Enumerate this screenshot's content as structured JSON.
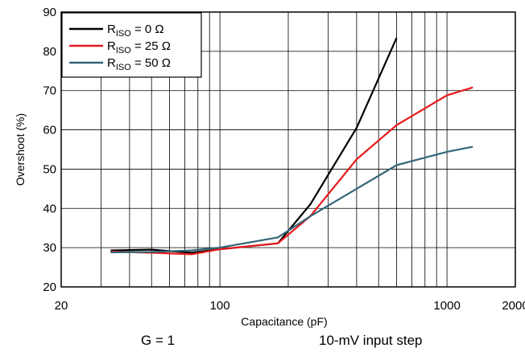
{
  "chart_data": {
    "type": "line",
    "xlabel": "Capacitance (pF)",
    "ylabel": "Overshoot (%)",
    "xscale": "log",
    "xlim": [
      20,
      2000
    ],
    "ylim": [
      20,
      90
    ],
    "x_ticks": [
      20,
      100,
      1000,
      2000
    ],
    "x_tick_labels": [
      "20",
      "100",
      "1000",
      "2000"
    ],
    "y_ticks": [
      20,
      30,
      40,
      50,
      60,
      70,
      80,
      90
    ],
    "grid": true,
    "legend_position": "top-left",
    "series": [
      {
        "name_main": "R",
        "name_sub": "ISO",
        "name_rest": " = 0 Ω",
        "color": "#000000",
        "x": [
          33,
          50,
          75,
          100,
          180,
          250,
          400,
          600
        ],
        "y": [
          29.3,
          29.5,
          28.7,
          29.6,
          31.1,
          41,
          60.5,
          83.4
        ]
      },
      {
        "name_main": "R",
        "name_sub": "ISO",
        "name_rest": " = 25 Ω",
        "color": "#e8191c",
        "x": [
          33,
          50,
          75,
          100,
          180,
          250,
          400,
          600,
          1000,
          1300
        ],
        "y": [
          29.0,
          28.7,
          28.3,
          29.6,
          31.1,
          38,
          52.5,
          61.2,
          68.8,
          70.8
        ]
      },
      {
        "name_main": "R",
        "name_sub": "ISO",
        "name_rest": " = 50 Ω",
        "color": "#336677",
        "x": [
          33,
          50,
          75,
          100,
          180,
          250,
          400,
          600,
          1000,
          1300
        ],
        "y": [
          28.8,
          28.9,
          29.3,
          30.0,
          32.6,
          38,
          45,
          51,
          54.4,
          55.7
        ]
      }
    ]
  },
  "notes": {
    "gain": "G = 1",
    "step": "10-mV input step"
  }
}
